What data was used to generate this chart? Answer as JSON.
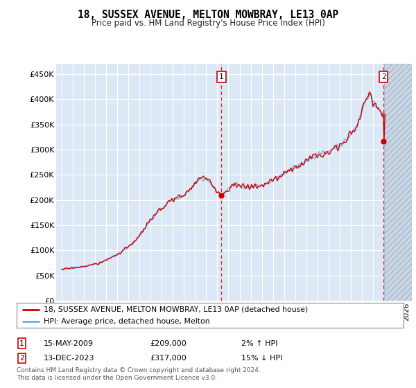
{
  "title": "18, SUSSEX AVENUE, MELTON MOWBRAY, LE13 0AP",
  "subtitle": "Price paid vs. HM Land Registry's House Price Index (HPI)",
  "legend_line1": "18, SUSSEX AVENUE, MELTON MOWBRAY, LE13 0AP (detached house)",
  "legend_line2": "HPI: Average price, detached house, Melton",
  "point1_date": "15-MAY-2009",
  "point1_price": "£209,000",
  "point1_hpi": "2% ↑ HPI",
  "point2_date": "13-DEC-2023",
  "point2_price": "£317,000",
  "point2_hpi": "15% ↓ HPI",
  "footnote1": "Contains HM Land Registry data © Crown copyright and database right 2024.",
  "footnote2": "This data is licensed under the Open Government Licence v3.0.",
  "hpi_color": "#7aaadd",
  "price_color": "#cc0000",
  "background_color": "#dce8f5",
  "hatch_color": "#c0c8d8",
  "ylim": [
    0,
    470000
  ],
  "yticks": [
    0,
    50000,
    100000,
    150000,
    200000,
    250000,
    300000,
    350000,
    400000,
    450000
  ],
  "ytick_labels": [
    "£0",
    "£50K",
    "£100K",
    "£150K",
    "£200K",
    "£250K",
    "£300K",
    "£350K",
    "£400K",
    "£450K"
  ],
  "xmin": 1994.5,
  "xmax": 2026.5,
  "data_end": 2024.0
}
